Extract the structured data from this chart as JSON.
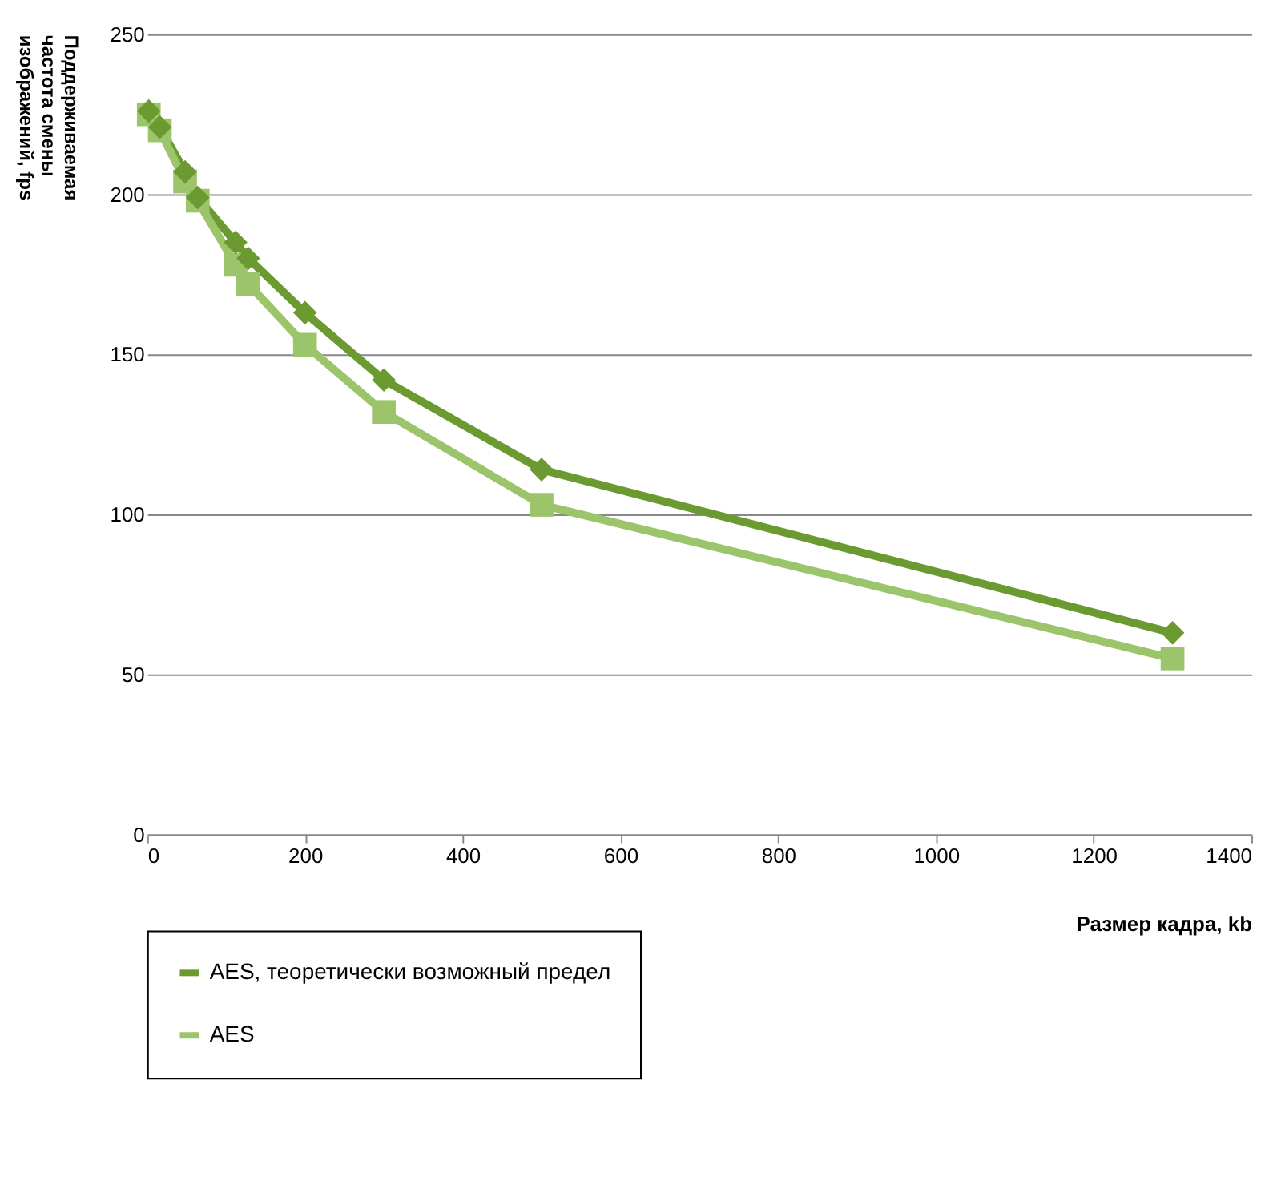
{
  "chart_data": {
    "type": "line",
    "xlabel": "Размер кадра, kb",
    "ylabel": "Поддерживаемая частота смены изображений, fps",
    "x": [
      2,
      16,
      48,
      64,
      112,
      128,
      200,
      300,
      500,
      1300
    ],
    "series": [
      {
        "name": "AES, теоретически возможный предел",
        "color": "#6b9a30",
        "marker": "diamond",
        "values": [
          226,
          221,
          207,
          199,
          185,
          180,
          163,
          142,
          114,
          63
        ]
      },
      {
        "name": "AES",
        "color": "#9cc46a",
        "marker": "square",
        "values": [
          225,
          220,
          204,
          198,
          178,
          172,
          153,
          132,
          103,
          55
        ]
      }
    ],
    "xlim": [
      0,
      1400
    ],
    "xticks": [
      0,
      200,
      400,
      600,
      800,
      1000,
      1200,
      1400
    ],
    "ylim": [
      0,
      250
    ],
    "yticks": [
      0,
      50,
      100,
      150,
      200,
      250
    ],
    "grid": "y",
    "legend": "bottom left"
  }
}
